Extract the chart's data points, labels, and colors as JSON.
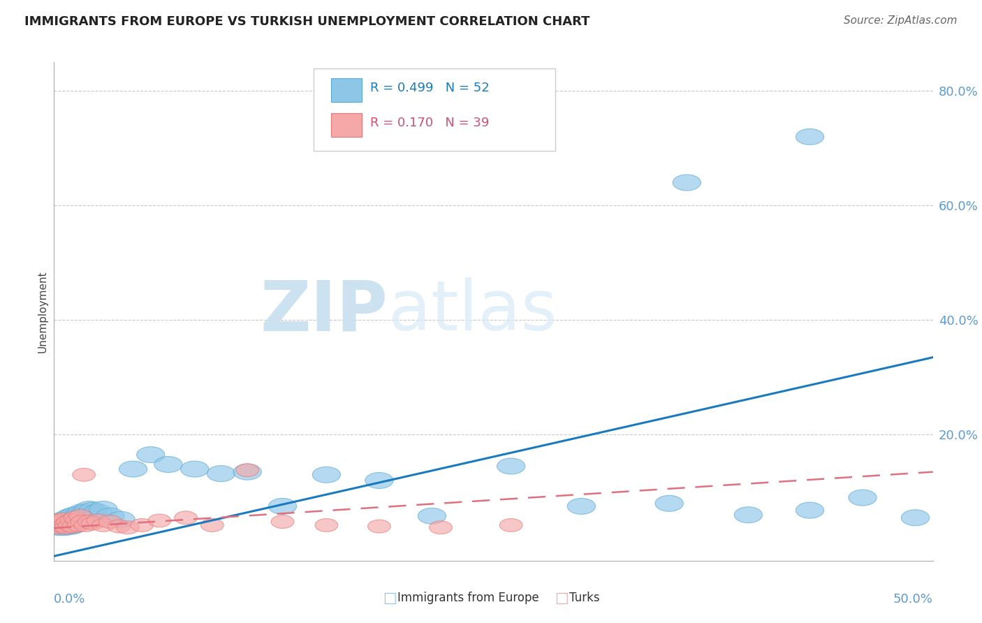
{
  "title": "IMMIGRANTS FROM EUROPE VS TURKISH UNEMPLOYMENT CORRELATION CHART",
  "source": "Source: ZipAtlas.com",
  "ylabel": "Unemployment",
  "xlim": [
    0.0,
    0.5
  ],
  "ylim": [
    -0.02,
    0.85
  ],
  "ytick_vals": [
    0.2,
    0.4,
    0.6,
    0.8
  ],
  "ytick_labels": [
    "20.0%",
    "40.0%",
    "60.0%",
    "80.0%"
  ],
  "blue_color": "#8ec6e8",
  "pink_color": "#f4a8a8",
  "blue_edge": "#5aabd4",
  "pink_edge": "#e87878",
  "line_blue": "#1a7abf",
  "line_pink": "#e07080",
  "watermark_zip": "ZIP",
  "watermark_atlas": "atlas",
  "blue_line_x": [
    0.0,
    0.5
  ],
  "blue_line_y": [
    -0.012,
    0.335
  ],
  "pink_line_x": [
    0.0,
    0.5
  ],
  "pink_line_y": [
    0.037,
    0.135
  ],
  "blue_scatter_x": [
    0.001,
    0.002,
    0.003,
    0.004,
    0.004,
    0.005,
    0.005,
    0.006,
    0.006,
    0.007,
    0.007,
    0.008,
    0.008,
    0.009,
    0.009,
    0.01,
    0.01,
    0.011,
    0.011,
    0.012,
    0.012,
    0.013,
    0.014,
    0.015,
    0.016,
    0.017,
    0.018,
    0.02,
    0.022,
    0.025,
    0.028,
    0.032,
    0.038,
    0.045,
    0.055,
    0.065,
    0.08,
    0.095,
    0.11,
    0.13,
    0.155,
    0.185,
    0.215,
    0.26,
    0.3,
    0.35,
    0.395,
    0.43,
    0.46,
    0.49,
    0.36,
    0.43
  ],
  "blue_scatter_y": [
    0.04,
    0.042,
    0.038,
    0.045,
    0.05,
    0.04,
    0.048,
    0.042,
    0.038,
    0.045,
    0.05,
    0.04,
    0.055,
    0.042,
    0.048,
    0.04,
    0.058,
    0.042,
    0.05,
    0.045,
    0.06,
    0.055,
    0.06,
    0.055,
    0.065,
    0.058,
    0.065,
    0.07,
    0.068,
    0.065,
    0.07,
    0.058,
    0.052,
    0.14,
    0.165,
    0.148,
    0.14,
    0.132,
    0.135,
    0.075,
    0.13,
    0.12,
    0.058,
    0.145,
    0.075,
    0.08,
    0.06,
    0.068,
    0.09,
    0.055,
    0.64,
    0.72
  ],
  "pink_scatter_x": [
    0.001,
    0.002,
    0.003,
    0.003,
    0.004,
    0.004,
    0.005,
    0.005,
    0.006,
    0.007,
    0.007,
    0.008,
    0.009,
    0.01,
    0.011,
    0.012,
    0.013,
    0.014,
    0.015,
    0.016,
    0.017,
    0.018,
    0.02,
    0.022,
    0.025,
    0.028,
    0.032,
    0.037,
    0.042,
    0.05,
    0.06,
    0.075,
    0.09,
    0.11,
    0.13,
    0.155,
    0.185,
    0.22,
    0.26
  ],
  "pink_scatter_y": [
    0.04,
    0.038,
    0.045,
    0.05,
    0.042,
    0.048,
    0.04,
    0.052,
    0.042,
    0.045,
    0.038,
    0.048,
    0.042,
    0.05,
    0.04,
    0.055,
    0.05,
    0.042,
    0.058,
    0.048,
    0.13,
    0.042,
    0.048,
    0.045,
    0.05,
    0.042,
    0.048,
    0.04,
    0.038,
    0.042,
    0.05,
    0.055,
    0.042,
    0.138,
    0.048,
    0.042,
    0.04,
    0.038,
    0.042
  ]
}
